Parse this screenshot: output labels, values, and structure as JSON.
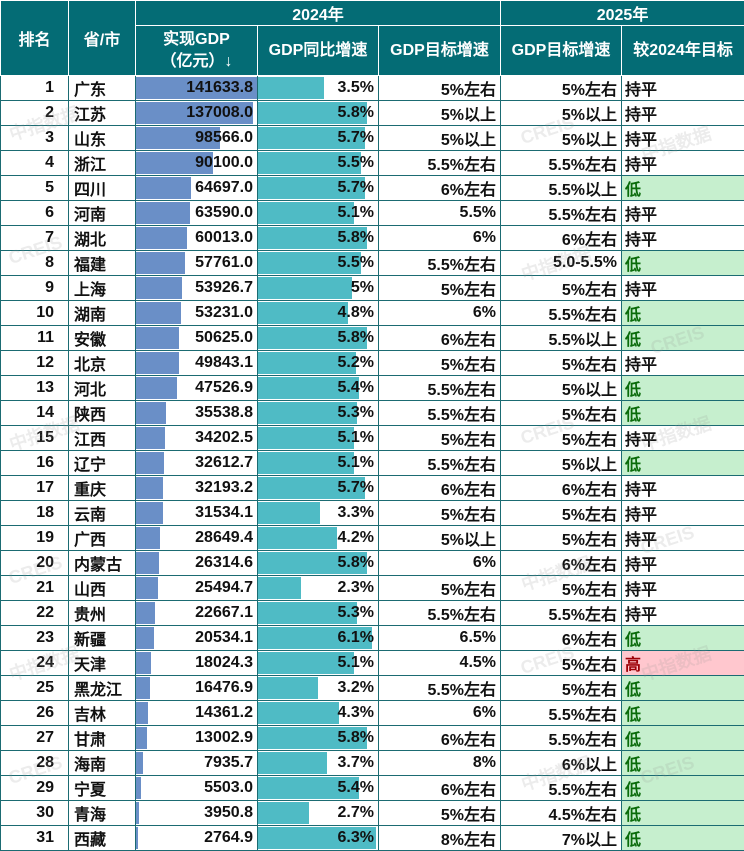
{
  "header": {
    "rank": "排名",
    "province": "省/市",
    "group_2024": "2024年",
    "group_2025": "2025年",
    "gdp_line1": "实现GDP",
    "gdp_line2": "（亿元）↓",
    "growth_2024": "GDP同比增速",
    "target_2024": "GDP目标增速",
    "target_2025": "GDP目标增速",
    "compare": "较2024年目标"
  },
  "colors": {
    "header_bg": "#046c75",
    "gdp_bar": "#6a8fc7",
    "growth_bar": "#4fbbc5",
    "low_bg": "#c6efce",
    "low_text": "#0a6b0a",
    "high_bg": "#ffc7ce",
    "high_text": "#9c0006"
  },
  "watermark": {
    "text_cn": "中指数据",
    "text_en": "CREIS"
  },
  "rows": [
    {
      "rank": "1",
      "province": "广东",
      "gdp": "141633.8",
      "growth": "3.5%",
      "target_2024": "5%左右",
      "target_2025": "5%左右",
      "compare": "持平"
    },
    {
      "rank": "2",
      "province": "江苏",
      "gdp": "137008.0",
      "growth": "5.8%",
      "target_2024": "5%以上",
      "target_2025": "5%以上",
      "compare": "持平"
    },
    {
      "rank": "3",
      "province": "山东",
      "gdp": "98566.0",
      "growth": "5.7%",
      "target_2024": "5%以上",
      "target_2025": "5%以上",
      "compare": "持平"
    },
    {
      "rank": "4",
      "province": "浙江",
      "gdp": "90100.0",
      "growth": "5.5%",
      "target_2024": "5.5%左右",
      "target_2025": "5.5%左右",
      "compare": "持平"
    },
    {
      "rank": "5",
      "province": "四川",
      "gdp": "64697.0",
      "growth": "5.7%",
      "target_2024": "6%左右",
      "target_2025": "5.5%以上",
      "compare": "低"
    },
    {
      "rank": "6",
      "province": "河南",
      "gdp": "63590.0",
      "growth": "5.1%",
      "target_2024": "5.5%",
      "target_2025": "5.5%左右",
      "compare": "持平"
    },
    {
      "rank": "7",
      "province": "湖北",
      "gdp": "60013.0",
      "growth": "5.8%",
      "target_2024": "6%",
      "target_2025": "6%左右",
      "compare": "持平"
    },
    {
      "rank": "8",
      "province": "福建",
      "gdp": "57761.0",
      "growth": "5.5%",
      "target_2024": "5.5%左右",
      "target_2025": "5.0-5.5%",
      "compare": "低"
    },
    {
      "rank": "9",
      "province": "上海",
      "gdp": "53926.7",
      "growth": "5%",
      "target_2024": "5%左右",
      "target_2025": "5%左右",
      "compare": "持平"
    },
    {
      "rank": "10",
      "province": "湖南",
      "gdp": "53231.0",
      "growth": "4.8%",
      "target_2024": "6%",
      "target_2025": "5.5%左右",
      "compare": "低"
    },
    {
      "rank": "11",
      "province": "安徽",
      "gdp": "50625.0",
      "growth": "5.8%",
      "target_2024": "6%左右",
      "target_2025": "5.5%以上",
      "compare": "低"
    },
    {
      "rank": "12",
      "province": "北京",
      "gdp": "49843.1",
      "growth": "5.2%",
      "target_2024": "5%左右",
      "target_2025": "5%左右",
      "compare": "持平"
    },
    {
      "rank": "13",
      "province": "河北",
      "gdp": "47526.9",
      "growth": "5.4%",
      "target_2024": "5.5%左右",
      "target_2025": "5%以上",
      "compare": "低"
    },
    {
      "rank": "14",
      "province": "陕西",
      "gdp": "35538.8",
      "growth": "5.3%",
      "target_2024": "5.5%左右",
      "target_2025": "5%左右",
      "compare": "低"
    },
    {
      "rank": "15",
      "province": "江西",
      "gdp": "34202.5",
      "growth": "5.1%",
      "target_2024": "5%左右",
      "target_2025": "5%左右",
      "compare": "持平"
    },
    {
      "rank": "16",
      "province": "辽宁",
      "gdp": "32612.7",
      "growth": "5.1%",
      "target_2024": "5.5%左右",
      "target_2025": "5%以上",
      "compare": "低"
    },
    {
      "rank": "17",
      "province": "重庆",
      "gdp": "32193.2",
      "growth": "5.7%",
      "target_2024": "6%左右",
      "target_2025": "6%左右",
      "compare": "持平"
    },
    {
      "rank": "18",
      "province": "云南",
      "gdp": "31534.1",
      "growth": "3.3%",
      "target_2024": "5%左右",
      "target_2025": "5%左右",
      "compare": "持平"
    },
    {
      "rank": "19",
      "province": "广西",
      "gdp": "28649.4",
      "growth": "4.2%",
      "target_2024": "5%以上",
      "target_2025": "5%左右",
      "compare": "持平"
    },
    {
      "rank": "20",
      "province": "内蒙古",
      "gdp": "26314.6",
      "growth": "5.8%",
      "target_2024": "6%",
      "target_2025": "6%左右",
      "compare": "持平"
    },
    {
      "rank": "21",
      "province": "山西",
      "gdp": "25494.7",
      "growth": "2.3%",
      "target_2024": "5%左右",
      "target_2025": "5%左右",
      "compare": "持平"
    },
    {
      "rank": "22",
      "province": "贵州",
      "gdp": "22667.1",
      "growth": "5.3%",
      "target_2024": "5.5%左右",
      "target_2025": "5.5%左右",
      "compare": "持平"
    },
    {
      "rank": "23",
      "province": "新疆",
      "gdp": "20534.1",
      "growth": "6.1%",
      "target_2024": "6.5%",
      "target_2025": "6%左右",
      "compare": "低"
    },
    {
      "rank": "24",
      "province": "天津",
      "gdp": "18024.3",
      "growth": "5.1%",
      "target_2024": "4.5%",
      "target_2025": "5%左右",
      "compare": "高"
    },
    {
      "rank": "25",
      "province": "黑龙江",
      "gdp": "16476.9",
      "growth": "3.2%",
      "target_2024": "5.5%左右",
      "target_2025": "5%左右",
      "compare": "低"
    },
    {
      "rank": "26",
      "province": "吉林",
      "gdp": "14361.2",
      "growth": "4.3%",
      "target_2024": "6%",
      "target_2025": "5.5%左右",
      "compare": "低"
    },
    {
      "rank": "27",
      "province": "甘肃",
      "gdp": "13002.9",
      "growth": "5.8%",
      "target_2024": "6%左右",
      "target_2025": "5.5%左右",
      "compare": "低"
    },
    {
      "rank": "28",
      "province": "海南",
      "gdp": "7935.7",
      "growth": "3.7%",
      "target_2024": "8%",
      "target_2025": "6%以上",
      "compare": "低"
    },
    {
      "rank": "29",
      "province": "宁夏",
      "gdp": "5503.0",
      "growth": "5.4%",
      "target_2024": "6%左右",
      "target_2025": "5.5%左右",
      "compare": "低"
    },
    {
      "rank": "30",
      "province": "青海",
      "gdp": "3950.8",
      "growth": "2.7%",
      "target_2024": "5%左右",
      "target_2025": "4.5%左右",
      "compare": "低"
    },
    {
      "rank": "31",
      "province": "西藏",
      "gdp": "2764.9",
      "growth": "6.3%",
      "target_2024": "8%左右",
      "target_2025": "7%以上",
      "compare": "低"
    }
  ]
}
